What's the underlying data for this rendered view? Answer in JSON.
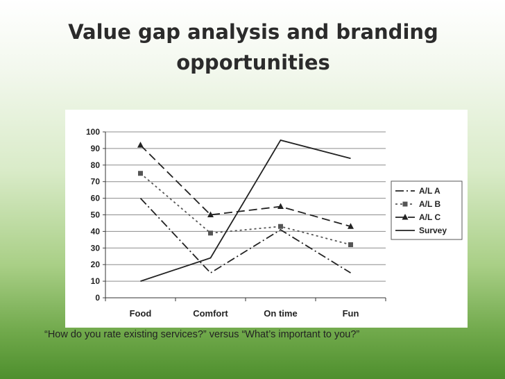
{
  "slide": {
    "title_line1": "Value gap analysis and branding",
    "title_line2": "opportunities",
    "caption": "“How do you rate existing services?” versus “What’s important to you?”"
  },
  "chart_data": {
    "type": "line",
    "categories": [
      "Food",
      "Comfort",
      "On time",
      "Fun"
    ],
    "ylim": [
      0,
      100
    ],
    "yticks": [
      0,
      10,
      20,
      30,
      40,
      50,
      60,
      70,
      80,
      90,
      100
    ],
    "grid": true,
    "legend_position": "right",
    "series": [
      {
        "name": "A/L A",
        "values": [
          60,
          15,
          41,
          15
        ],
        "color": "#222222",
        "dash": "12 4 2 4",
        "marker": "none"
      },
      {
        "name": "A/L B",
        "values": [
          75,
          39,
          43,
          32
        ],
        "color": "#555555",
        "dash": "3 4",
        "marker": "square"
      },
      {
        "name": "A/L C",
        "values": [
          92,
          50,
          55,
          43
        ],
        "color": "#222222",
        "dash": "12 6",
        "marker": "triangle"
      },
      {
        "name": "Survey",
        "values": [
          10,
          24,
          95,
          84
        ],
        "color": "#222222",
        "dash": "",
        "marker": "none"
      }
    ]
  }
}
